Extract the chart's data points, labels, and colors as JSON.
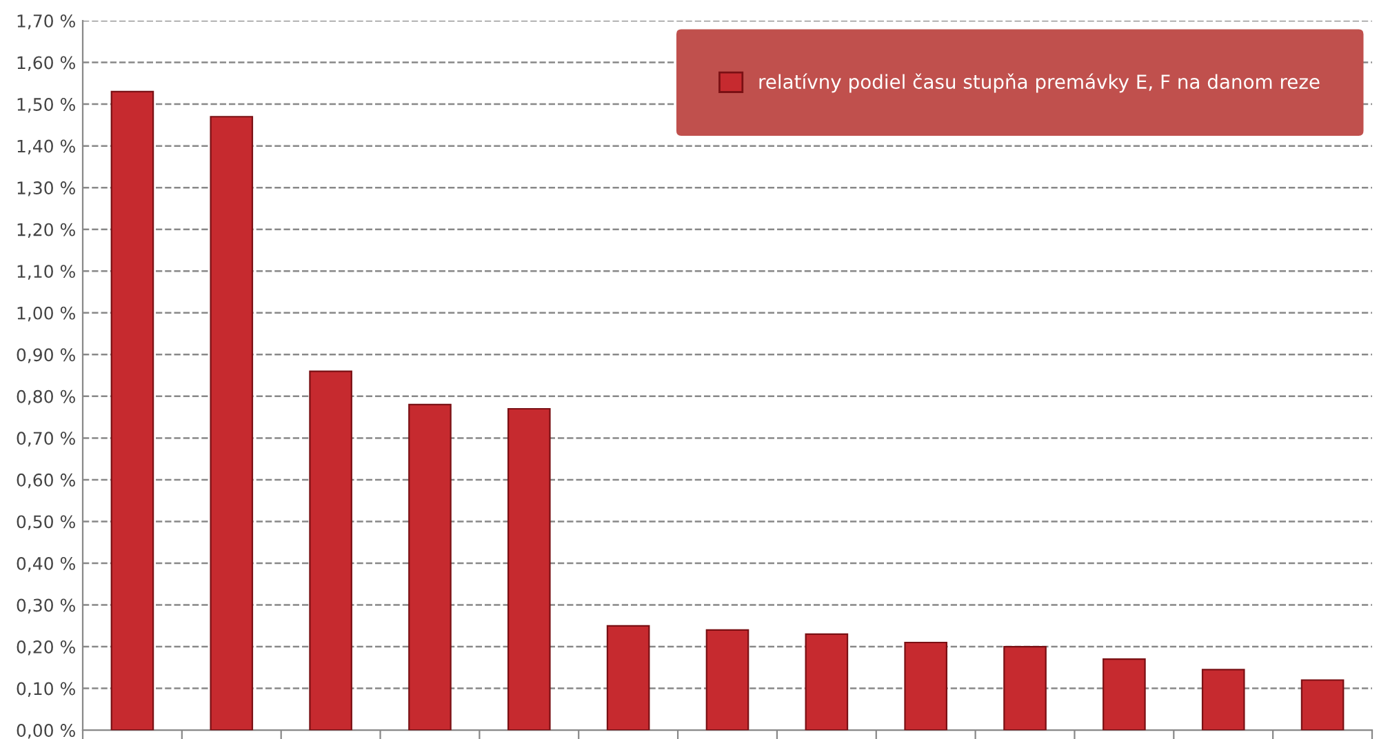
{
  "chart_data": {
    "type": "bar",
    "categories": [
      null,
      null,
      null,
      null,
      null,
      null,
      null,
      null,
      null,
      null,
      null,
      null,
      null
    ],
    "series": [
      {
        "name": "relatívny podiel času stupňa premávky E, F na danom reze",
        "color": "#c62a2f",
        "values": [
          1.53,
          1.47,
          0.86,
          0.78,
          0.77,
          0.25,
          0.24,
          0.23,
          0.21,
          0.2,
          0.17,
          0.145,
          0.12
        ]
      }
    ],
    "ylim": [
      0,
      1.7
    ],
    "yticks": [
      {
        "value": 0,
        "label": "0,00 %"
      },
      {
        "value": 0.1,
        "label": "0,10 %"
      },
      {
        "value": 0.2,
        "label": "0,20 %"
      },
      {
        "value": 0.3,
        "label": "0,30 %"
      },
      {
        "value": 0.4,
        "label": "0,40 %"
      },
      {
        "value": 0.5,
        "label": "0,50 %"
      },
      {
        "value": 0.6,
        "label": "0,60 %"
      },
      {
        "value": 0.7,
        "label": "0,70 %"
      },
      {
        "value": 0.8,
        "label": "0,80 %"
      },
      {
        "value": 0.9,
        "label": "0,90 %"
      },
      {
        "value": 1.0,
        "label": "1,00 %"
      },
      {
        "value": 1.1,
        "label": "1,10 %"
      },
      {
        "value": 1.2,
        "label": "1,20 %"
      },
      {
        "value": 1.3,
        "label": "1,30 %"
      },
      {
        "value": 1.4,
        "label": "1,40 %"
      },
      {
        "value": 1.5,
        "label": "1,50 %"
      },
      {
        "value": 1.6,
        "label": "1,60 %"
      },
      {
        "value": 1.7,
        "label": "1,70 %"
      }
    ],
    "grid": "y",
    "legend": "top right"
  }
}
